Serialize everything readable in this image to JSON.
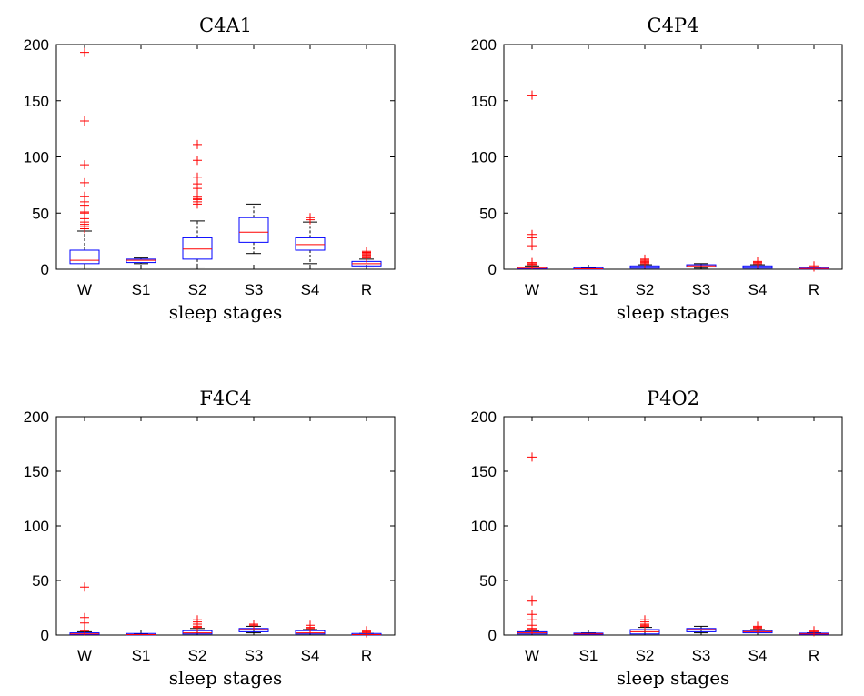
{
  "colors": {
    "box": "#0000ff",
    "median": "#ff0000",
    "outlier": "#ff0000",
    "axes": "#000000",
    "background": "#ffffff"
  },
  "chart_data": [
    {
      "type": "box",
      "title": "C4A1",
      "xlabel": "sleep stages",
      "ylabel": "",
      "ylim": [
        0,
        200
      ],
      "yticks": [
        "0",
        "50",
        "100",
        "150",
        "200"
      ],
      "categories": [
        "W",
        "S1",
        "S2",
        "S3",
        "S4",
        "R"
      ],
      "boxes": [
        {
          "category": "W",
          "whisker_low": 2,
          "q1": 5,
          "median": 8,
          "q3": 17,
          "whisker_high": 34,
          "outliers": [
            36,
            38,
            40,
            42,
            45,
            50,
            51,
            57,
            60,
            65,
            77,
            93,
            132,
            193
          ]
        },
        {
          "category": "S1",
          "whisker_low": 5,
          "q1": 6,
          "median": 8,
          "q3": 9,
          "whisker_high": 10,
          "outliers": []
        },
        {
          "category": "S2",
          "whisker_low": 2,
          "q1": 9,
          "median": 18,
          "q3": 28,
          "whisker_high": 43,
          "outliers": [
            58,
            60,
            62,
            63,
            65,
            72,
            76,
            82,
            97,
            111
          ]
        },
        {
          "category": "S3",
          "whisker_low": 14,
          "q1": 24,
          "median": 33,
          "q3": 46,
          "whisker_high": 58,
          "outliers": []
        },
        {
          "category": "S4",
          "whisker_low": 5,
          "q1": 17,
          "median": 22,
          "q3": 28,
          "whisker_high": 42,
          "outliers": [
            44,
            46
          ]
        },
        {
          "category": "R",
          "whisker_low": 2,
          "q1": 3,
          "median": 5,
          "q3": 7,
          "whisker_high": 9,
          "outliers": [
            10,
            11,
            12,
            13,
            14,
            15,
            16
          ]
        }
      ]
    },
    {
      "type": "box",
      "title": "C4P4",
      "xlabel": "sleep stages",
      "ylabel": "",
      "ylim": [
        0,
        200
      ],
      "yticks": [
        "0",
        "50",
        "100",
        "150",
        "200"
      ],
      "categories": [
        "W",
        "S1",
        "S2",
        "S3",
        "S4",
        "R"
      ],
      "boxes": [
        {
          "category": "W",
          "whisker_low": 0,
          "q1": 0.5,
          "median": 1,
          "q3": 2,
          "whisker_high": 3,
          "outliers": [
            4,
            5,
            6,
            21,
            28,
            31,
            155
          ]
        },
        {
          "category": "S1",
          "whisker_low": 0,
          "q1": 0.2,
          "median": 0.4,
          "q3": 0.6,
          "whisker_high": 0.8,
          "outliers": []
        },
        {
          "category": "S2",
          "whisker_low": 0,
          "q1": 1,
          "median": 2,
          "q3": 3,
          "whisker_high": 4,
          "outliers": [
            5,
            6,
            7,
            8,
            9
          ]
        },
        {
          "category": "S3",
          "whisker_low": 1,
          "q1": 2,
          "median": 3,
          "q3": 4,
          "whisker_high": 5,
          "outliers": []
        },
        {
          "category": "S4",
          "whisker_low": 0,
          "q1": 1,
          "median": 2,
          "q3": 3,
          "whisker_high": 4,
          "outliers": [
            5,
            6,
            7
          ]
        },
        {
          "category": "R",
          "whisker_low": 0,
          "q1": 0.3,
          "median": 0.6,
          "q3": 1,
          "whisker_high": 1.5,
          "outliers": [
            2,
            3
          ]
        }
      ]
    },
    {
      "type": "box",
      "title": "F4C4",
      "xlabel": "sleep stages",
      "ylabel": "",
      "ylim": [
        0,
        200
      ],
      "yticks": [
        "0",
        "50",
        "100",
        "150",
        "200"
      ],
      "categories": [
        "W",
        "S1",
        "S2",
        "S3",
        "S4",
        "R"
      ],
      "boxes": [
        {
          "category": "W",
          "whisker_low": 0,
          "q1": 0.5,
          "median": 1,
          "q3": 2,
          "whisker_high": 3,
          "outliers": [
            4,
            11,
            16,
            44
          ]
        },
        {
          "category": "S1",
          "whisker_low": 0,
          "q1": 0.2,
          "median": 0.4,
          "q3": 0.6,
          "whisker_high": 0.8,
          "outliers": []
        },
        {
          "category": "S2",
          "whisker_low": 0,
          "q1": 1,
          "median": 2,
          "q3": 4,
          "whisker_high": 6,
          "outliers": [
            7,
            8,
            10,
            12,
            14
          ]
        },
        {
          "category": "S3",
          "whisker_low": 2,
          "q1": 3,
          "median": 5,
          "q3": 6,
          "whisker_high": 8,
          "outliers": [
            9,
            10
          ]
        },
        {
          "category": "S4",
          "whisker_low": 0,
          "q1": 1,
          "median": 2,
          "q3": 4,
          "whisker_high": 5,
          "outliers": [
            6,
            7,
            9
          ]
        },
        {
          "category": "R",
          "whisker_low": 0,
          "q1": 0.2,
          "median": 0.4,
          "q3": 0.8,
          "whisker_high": 1.5,
          "outliers": [
            2,
            3,
            4
          ]
        }
      ]
    },
    {
      "type": "box",
      "title": "P4O2",
      "xlabel": "sleep stages",
      "ylabel": "",
      "ylim": [
        0,
        200
      ],
      "yticks": [
        "0",
        "50",
        "100",
        "150",
        "200"
      ],
      "categories": [
        "W",
        "S1",
        "S2",
        "S3",
        "S4",
        "R"
      ],
      "boxes": [
        {
          "category": "W",
          "whisker_low": 0,
          "q1": 1,
          "median": 2,
          "q3": 3,
          "whisker_high": 4,
          "outliers": [
            5,
            6,
            9,
            14,
            19,
            31,
            32,
            163
          ]
        },
        {
          "category": "S1",
          "whisker_low": 0,
          "q1": 0.5,
          "median": 1,
          "q3": 1.5,
          "whisker_high": 2,
          "outliers": []
        },
        {
          "category": "S2",
          "whisker_low": 0,
          "q1": 1,
          "median": 3,
          "q3": 5,
          "whisker_high": 7,
          "outliers": [
            8,
            9,
            10,
            12,
            14
          ]
        },
        {
          "category": "S3",
          "whisker_low": 2,
          "q1": 3,
          "median": 5,
          "q3": 6,
          "whisker_high": 8,
          "outliers": []
        },
        {
          "category": "S4",
          "whisker_low": 0,
          "q1": 2,
          "median": 3,
          "q3": 4,
          "whisker_high": 5,
          "outliers": [
            6,
            7,
            8
          ]
        },
        {
          "category": "R",
          "whisker_low": 0,
          "q1": 0.5,
          "median": 1,
          "q3": 1.5,
          "whisker_high": 2,
          "outliers": [
            3,
            4
          ]
        }
      ]
    }
  ]
}
